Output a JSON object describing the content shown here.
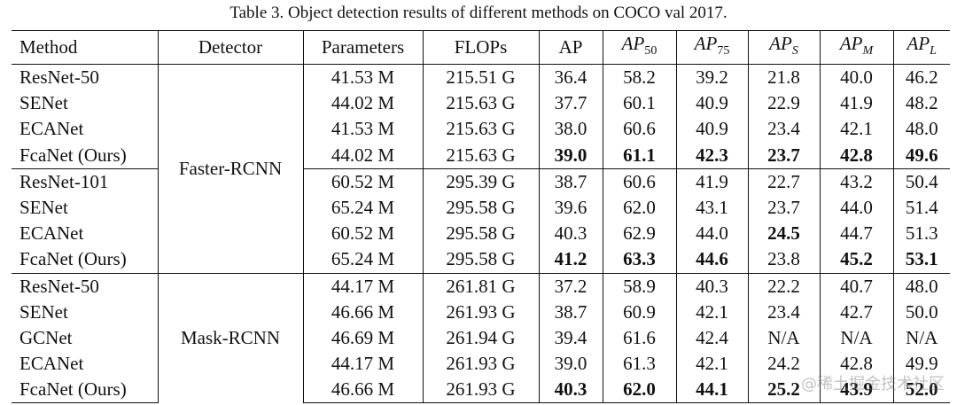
{
  "caption": "Table 3. Object detection results of different methods on COCO val 2017.",
  "headers": {
    "method": "Method",
    "detector": "Detector",
    "parameters": "Parameters",
    "flops": "FLOPs",
    "ap": "AP",
    "ap50": {
      "base": "AP",
      "sub": "50"
    },
    "ap75": {
      "base": "AP",
      "sub": "75"
    },
    "aps": {
      "base": "AP",
      "sub": "S"
    },
    "apm": {
      "base": "AP",
      "sub": "M"
    },
    "apl": {
      "base": "AP",
      "sub": "L"
    }
  },
  "groups": [
    {
      "detector": "Faster-RCNN",
      "rows": [
        {
          "method": "ResNet-50",
          "params": "41.53 M",
          "flops": "215.51 G",
          "ap": "36.4",
          "ap50": "58.2",
          "ap75": "39.2",
          "aps": "21.8",
          "apm": "40.0",
          "apl": "46.2",
          "bold": []
        },
        {
          "method": "SENet",
          "params": "44.02 M",
          "flops": "215.63 G",
          "ap": "37.7",
          "ap50": "60.1",
          "ap75": "40.9",
          "aps": "22.9",
          "apm": "41.9",
          "apl": "48.2",
          "bold": []
        },
        {
          "method": "ECANet",
          "params": "41.53 M",
          "flops": "215.63 G",
          "ap": "38.0",
          "ap50": "60.6",
          "ap75": "40.9",
          "aps": "23.4",
          "apm": "42.1",
          "apl": "48.0",
          "bold": []
        },
        {
          "method": "FcaNet (Ours)",
          "params": "44.02 M",
          "flops": "215.63 G",
          "ap": "39.0",
          "ap50": "61.1",
          "ap75": "42.3",
          "aps": "23.7",
          "apm": "42.8",
          "apl": "49.6",
          "bold": [
            "ap",
            "ap50",
            "ap75",
            "aps",
            "apm",
            "apl"
          ]
        },
        {
          "method": "ResNet-101",
          "params": "60.52 M",
          "flops": "295.39 G",
          "ap": "38.7",
          "ap50": "60.6",
          "ap75": "41.9",
          "aps": "22.7",
          "apm": "43.2",
          "apl": "50.4",
          "bold": [],
          "sep": true
        },
        {
          "method": "SENet",
          "params": "65.24 M",
          "flops": "295.58 G",
          "ap": "39.6",
          "ap50": "62.0",
          "ap75": "43.1",
          "aps": "23.7",
          "apm": "44.0",
          "apl": "51.4",
          "bold": []
        },
        {
          "method": "ECANet",
          "params": "60.52 M",
          "flops": "295.58 G",
          "ap": "40.3",
          "ap50": "62.9",
          "ap75": "44.0",
          "aps": "24.5",
          "apm": "44.7",
          "apl": "51.3",
          "bold": [
            "aps"
          ]
        },
        {
          "method": "FcaNet (Ours)",
          "params": "65.24 M",
          "flops": "295.58 G",
          "ap": "41.2",
          "ap50": "63.3",
          "ap75": "44.6",
          "aps": "23.8",
          "apm": "45.2",
          "apl": "53.1",
          "bold": [
            "ap",
            "ap50",
            "ap75",
            "apm",
            "apl"
          ]
        }
      ]
    },
    {
      "detector": "Mask-RCNN",
      "rows": [
        {
          "method": "ResNet-50",
          "params": "44.17 M",
          "flops": "261.81 G",
          "ap": "37.2",
          "ap50": "58.9",
          "ap75": "40.3",
          "aps": "22.2",
          "apm": "40.7",
          "apl": "48.0",
          "bold": []
        },
        {
          "method": "SENet",
          "params": "46.66 M",
          "flops": "261.93 G",
          "ap": "38.7",
          "ap50": "60.9",
          "ap75": "42.1",
          "aps": "23.4",
          "apm": "42.7",
          "apl": "50.0",
          "bold": []
        },
        {
          "method": "GCNet",
          "params": "46.69 M",
          "flops": "261.94 G",
          "ap": "39.4",
          "ap50": "61.6",
          "ap75": "42.4",
          "aps": "N/A",
          "apm": "N/A",
          "apl": "N/A",
          "bold": []
        },
        {
          "method": "ECANet",
          "params": "44.17 M",
          "flops": "261.93 G",
          "ap": "39.0",
          "ap50": "61.3",
          "ap75": "42.1",
          "aps": "24.2",
          "apm": "42.8",
          "apl": "49.9",
          "bold": []
        },
        {
          "method": "FcaNet (Ours)",
          "params": "46.66 M",
          "flops": "261.93 G",
          "ap": "40.3",
          "ap50": "62.0",
          "ap75": "44.1",
          "aps": "25.2",
          "apm": "43.9",
          "apl": "52.0",
          "bold": [
            "ap",
            "ap50",
            "ap75",
            "aps",
            "apm",
            "apl"
          ]
        }
      ]
    }
  ],
  "watermark": "@稀土掘金技术社区"
}
